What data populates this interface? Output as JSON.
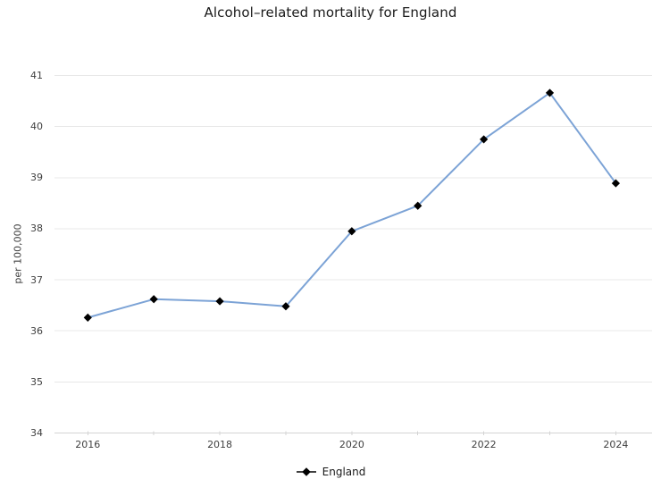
{
  "title": "Alcohol–related mortality for England",
  "chart_data": {
    "type": "line",
    "title": "Alcohol–related mortality for England",
    "x": [
      2016,
      2017,
      2018,
      2019,
      2020,
      2021,
      2022,
      2023,
      2024
    ],
    "series": [
      {
        "name": "England",
        "values": [
          36.26,
          36.62,
          36.58,
          36.48,
          37.95,
          38.45,
          39.75,
          40.66,
          38.89
        ],
        "line_color": "#7ca3d6",
        "marker": "diamond",
        "marker_color": "#000000"
      }
    ],
    "xlabel": "",
    "ylabel": "per 100,000",
    "ylim": [
      34,
      41
    ],
    "yticks": [
      34,
      35,
      36,
      37,
      38,
      39,
      40,
      41
    ],
    "xticks": [
      2016,
      2018,
      2020,
      2022,
      2024
    ],
    "x_minor_ticks": [
      2016,
      2017,
      2018,
      2019,
      2020,
      2021,
      2022,
      2023,
      2024
    ],
    "grid": "horizontal-only",
    "legend_position": "bottom"
  },
  "legend": {
    "items": [
      {
        "label": "England",
        "marker": "diamond-on-line",
        "color": "#000000"
      }
    ]
  },
  "colors": {
    "background": "#ffffff",
    "grid": "#e8e8e8",
    "axis": "#d4d4d4",
    "tick_label": "#3f3f3f",
    "title_text": "#1a1a1a"
  }
}
